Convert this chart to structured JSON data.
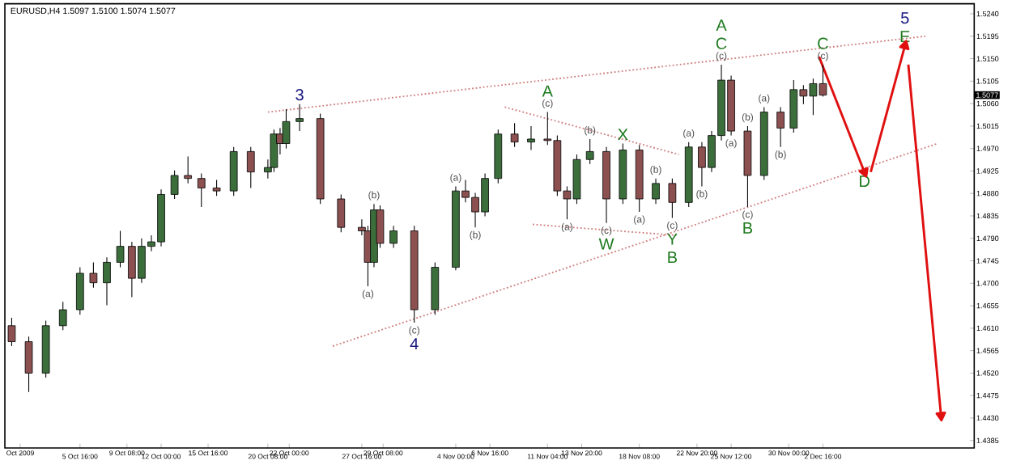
{
  "chart_data": {
    "type": "candlestick",
    "title": "EURUSD,H4 1.5097 1.5100 1.5074 1.5077",
    "x": [
      "2009-09-30T08:00",
      "2009-10-01T16:00",
      "2009-10-03T00:00",
      "2009-10-04T08:00",
      "2009-10-05T16:00",
      "2009-10-06T17:09",
      "2009-10-07T18:17",
      "2009-10-08T19:26",
      "2009-10-09T17:09",
      "2009-10-10T11:26",
      "2009-10-11T05:43",
      "2009-10-12T00:00",
      "2009-10-13T01:09",
      "2009-10-14T02:17",
      "2009-10-15T03:26",
      "2009-10-16T08:00",
      "2009-10-17T16:00",
      "2009-10-19T00:00",
      "2009-10-20T08:00",
      "2009-10-20T19:26",
      "2009-10-21T06:51",
      "2009-10-21T18:17",
      "2009-10-22T19:26",
      "2009-10-24T10:17",
      "2009-10-26T01:09",
      "2009-10-27T16:00",
      "2009-10-28T03:26",
      "2009-10-28T14:51",
      "2009-10-29T02:17",
      "2009-10-30T03:26",
      "2009-10-31T18:17",
      "2009-11-02T09:09",
      "2009-11-04T00:00",
      "2009-11-04T18:17",
      "2009-11-05T12:34",
      "2009-11-06T06:51",
      "2009-11-07T07:26",
      "2009-11-08T14:17",
      "2009-11-09T21:09",
      "2009-11-11T04:00",
      "2009-11-11T22:17",
      "2009-11-12T16:34",
      "2009-11-13T10:51",
      "2009-11-14T11:26",
      "2009-11-15T18:17",
      "2009-11-17T01:09",
      "2009-11-18T08:00",
      "2009-11-19T14:51",
      "2009-11-20T21:43",
      "2009-11-22T04:34",
      "2009-11-23T05:09",
      "2009-11-23T23:26",
      "2009-11-24T17:43",
      "2009-11-25T12:00",
      "2009-11-26T18:51",
      "2009-11-28T01:43",
      "2009-11-29T08:34",
      "2009-11-30T09:09",
      "2009-12-01T03:26",
      "2009-12-01T21:43",
      "2009-12-02T16:00"
    ],
    "ohlc": [
      [
        1.4615,
        1.4631,
        1.4574,
        1.4583
      ],
      [
        1.4583,
        1.4593,
        1.4482,
        1.452
      ],
      [
        1.452,
        1.4625,
        1.4511,
        1.4615
      ],
      [
        1.4615,
        1.4663,
        1.4606,
        1.4647
      ],
      [
        1.4647,
        1.4732,
        1.4637,
        1.472
      ],
      [
        1.472,
        1.4742,
        1.4691,
        1.4701
      ],
      [
        1.4701,
        1.4752,
        1.4656,
        1.4742
      ],
      [
        1.4742,
        1.4805,
        1.4732,
        1.4774
      ],
      [
        1.4774,
        1.4783,
        1.4672,
        1.471
      ],
      [
        1.471,
        1.479,
        1.4701,
        1.4774
      ],
      [
        1.4774,
        1.4796,
        1.4764,
        1.4783
      ],
      [
        1.4783,
        1.4888,
        1.4774,
        1.4878
      ],
      [
        1.4878,
        1.4926,
        1.4869,
        1.4916
      ],
      [
        1.4916,
        1.4954,
        1.49,
        1.491
      ],
      [
        1.491,
        1.492,
        1.4853,
        1.4891
      ],
      [
        1.4891,
        1.4907,
        1.4875,
        1.4885
      ],
      [
        1.4885,
        1.4973,
        1.4875,
        1.4964
      ],
      [
        1.4964,
        1.4973,
        1.4891,
        1.4923
      ],
      [
        1.4923,
        1.4948,
        1.491,
        1.4932
      ],
      [
        1.4932,
        1.5008,
        1.4923,
        1.4999
      ],
      [
        1.4999,
        1.5011,
        1.4958,
        1.498
      ],
      [
        1.498,
        1.5049,
        1.497,
        1.5024
      ],
      [
        1.5024,
        1.5059,
        1.5005,
        1.503
      ],
      [
        1.503,
        1.504,
        1.4859,
        1.4869
      ],
      [
        1.4869,
        1.4878,
        1.4802,
        1.4812
      ],
      [
        1.4812,
        1.4828,
        1.4796,
        1.4805
      ],
      [
        1.4805,
        1.4815,
        1.4694,
        1.4742
      ],
      [
        1.4742,
        1.4859,
        1.4732,
        1.4847
      ],
      [
        1.4847,
        1.4856,
        1.4771,
        1.478
      ],
      [
        1.478,
        1.4815,
        1.4771,
        1.4805
      ],
      [
        1.4805,
        1.4815,
        1.4621,
        1.4647
      ],
      [
        1.4647,
        1.4742,
        1.4637,
        1.4732
      ],
      [
        1.4732,
        1.4894,
        1.4726,
        1.4885
      ],
      [
        1.4885,
        1.4907,
        1.4862,
        1.4872
      ],
      [
        1.4872,
        1.4881,
        1.4812,
        1.4843
      ],
      [
        1.4843,
        1.492,
        1.4834,
        1.491
      ],
      [
        1.491,
        1.5008,
        1.49,
        1.4999
      ],
      [
        1.4999,
        1.5021,
        1.4973,
        1.4983
      ],
      [
        1.4983,
        1.5015,
        1.4967,
        1.4989
      ],
      [
        1.4989,
        1.5043,
        1.4977,
        1.4986
      ],
      [
        1.4986,
        1.4996,
        1.4875,
        1.4885
      ],
      [
        1.4885,
        1.4894,
        1.4828,
        1.4869
      ],
      [
        1.4869,
        1.4958,
        1.4859,
        1.4948
      ],
      [
        1.4948,
        1.4989,
        1.4939,
        1.4964
      ],
      [
        1.4964,
        1.4973,
        1.4821,
        1.4869
      ],
      [
        1.4869,
        1.498,
        1.4859,
        1.4967
      ],
      [
        1.4967,
        1.4977,
        1.4843,
        1.4869
      ],
      [
        1.4869,
        1.491,
        1.4859,
        1.49
      ],
      [
        1.49,
        1.491,
        1.4831,
        1.4862
      ],
      [
        1.4862,
        1.4983,
        1.4853,
        1.4973
      ],
      [
        1.4973,
        1.4983,
        1.4894,
        1.4932
      ],
      [
        1.4932,
        1.5005,
        1.4923,
        1.4996
      ],
      [
        1.4996,
        1.5138,
        1.4986,
        1.5107
      ],
      [
        1.5107,
        1.5116,
        1.4996,
        1.5005
      ],
      [
        1.5005,
        1.5015,
        1.4853,
        1.4916
      ],
      [
        1.4916,
        1.5053,
        1.4907,
        1.5043
      ],
      [
        1.5043,
        1.5053,
        1.4973,
        1.5011
      ],
      [
        1.5011,
        1.5107,
        1.5002,
        1.5088
      ],
      [
        1.5088,
        1.5097,
        1.5059,
        1.5075
      ],
      [
        1.5075,
        1.511,
        1.5037,
        1.51
      ],
      [
        1.51,
        1.5138,
        1.5074,
        1.5077
      ]
    ],
    "series": [
      {
        "type": "line",
        "color": "#d08080",
        "line_style": "dotted",
        "x": [
          "2009-10-20T08:00",
          "2009-12-10T16:00"
        ],
        "values": [
          1.5043,
          1.5195
        ]
      },
      {
        "type": "line",
        "color": "#d08080",
        "line_style": "dotted",
        "x": [
          "2009-10-25T09:36",
          "2009-12-11T14:51"
        ],
        "values": [
          1.4574,
          1.498
        ]
      },
      {
        "type": "line",
        "color": "#d08080",
        "line_style": "dotted",
        "x": [
          "2009-11-07T19:46",
          "2009-11-21T10:04"
        ],
        "values": [
          1.5053,
          1.4958
        ]
      },
      {
        "type": "line",
        "color": "#d08080",
        "line_style": "dotted",
        "x": [
          "2009-11-10T00:14",
          "2009-11-21T05:26"
        ],
        "values": [
          1.4818,
          1.4796
        ]
      },
      {
        "type": "line",
        "color": "#e01010",
        "line_style": "solid",
        "x": [
          "2009-12-02T08:41",
          "2009-12-05T21:43"
        ],
        "values": [
          1.5154,
          1.4923
        ]
      },
      {
        "type": "line",
        "color": "#e01010",
        "line_style": "solid",
        "x": [
          "2009-12-06T09:36",
          "2009-12-09T01:36"
        ],
        "values": [
          1.4923,
          1.5176
        ]
      },
      {
        "type": "line",
        "color": "#e01010",
        "line_style": "solid",
        "x": [
          "2009-12-09T08:00",
          "2009-12-11T21:15"
        ],
        "values": [
          1.5138,
          1.4435
        ]
      }
    ],
    "xlim": [
      "2009-09-29T19:12",
      "2009-12-14T11:26"
    ],
    "ylim": [
      1.437,
      1.526
    ],
    "xticks": [
      {
        "value": "2009-10-01T00:00",
        "label": "Oct 2009"
      },
      {
        "value": "2009-10-05T16:00",
        "label": "5 Oct 16:00"
      },
      {
        "value": "2009-10-09T08:00",
        "label": "9 Oct 08:00"
      },
      {
        "value": "2009-10-12T00:00",
        "label": "12 Oct 00:00"
      },
      {
        "value": "2009-10-15T16:00",
        "label": "15 Oct 16:00"
      },
      {
        "value": "2009-10-20T08:00",
        "label": "20 Oct 08:00"
      },
      {
        "value": "2009-10-22T00:00",
        "label": "22 Oct 00:00"
      },
      {
        "value": "2009-10-27T16:00",
        "label": "27 Oct 16:00"
      },
      {
        "value": "2009-10-29T08:00",
        "label": "29 Oct 08:00"
      },
      {
        "value": "2009-11-04T00:00",
        "label": "4 Nov 00:00"
      },
      {
        "value": "2009-11-06T16:00",
        "label": "6 Nov 16:00"
      },
      {
        "value": "2009-11-11T04:00",
        "label": "11 Nov 04:00"
      },
      {
        "value": "2009-11-13T20:00",
        "label": "13 Nov 20:00"
      },
      {
        "value": "2009-11-18T08:00",
        "label": "18 Nov 08:00"
      },
      {
        "value": "2009-11-22T20:00",
        "label": "22 Nov 20:00"
      },
      {
        "value": "2009-11-25T12:00",
        "label": "25 Nov 12:00"
      },
      {
        "value": "2009-11-30T00:00",
        "label": "30 Nov 00:00"
      },
      {
        "value": "2009-12-02T16:00",
        "label": "2 Dec 16:00"
      }
    ],
    "yticks": [
      {
        "value": 1.524,
        "label": "1.5240"
      },
      {
        "value": 1.5195,
        "label": "1.5195"
      },
      {
        "value": 1.515,
        "label": "1.5150"
      },
      {
        "value": 1.5105,
        "label": "1.5105"
      },
      {
        "value": 1.506,
        "label": "1.5060"
      },
      {
        "value": 1.5015,
        "label": "1.5015"
      },
      {
        "value": 1.497,
        "label": "1.4970"
      },
      {
        "value": 1.4925,
        "label": "1.4925"
      },
      {
        "value": 1.488,
        "label": "1.4880"
      },
      {
        "value": 1.4835,
        "label": "1.4835"
      },
      {
        "value": 1.479,
        "label": "1.4790"
      },
      {
        "value": 1.4745,
        "label": "1.4745"
      },
      {
        "value": 1.47,
        "label": "1.4700"
      },
      {
        "value": 1.4655,
        "label": "1.4655"
      },
      {
        "value": 1.461,
        "label": "1.4610"
      },
      {
        "value": 1.4565,
        "label": "1.4565"
      },
      {
        "value": 1.452,
        "label": "1.4520"
      },
      {
        "value": 1.4475,
        "label": "1.4475"
      },
      {
        "value": 1.443,
        "label": "1.4430"
      },
      {
        "value": 1.4385,
        "label": "1.4385"
      }
    ],
    "grid": false,
    "annotations": [
      "1.5077",
      {
        "text": "3",
        "x": "2009-10-22T19:26",
        "y": 1.5059
      },
      {
        "text": "(c)",
        "x": "2009-10-31T18:17",
        "y": 1.4621
      },
      {
        "text": "4",
        "x": "2009-10-31T18:17",
        "y": 1.4621
      },
      {
        "text": "(a)",
        "x": "2009-10-28T03:26",
        "y": 1.4694
      },
      {
        "text": "(b)",
        "x": "2009-10-28T14:51",
        "y": 1.4859
      },
      {
        "text": "(a)",
        "x": "2009-11-04T00:00",
        "y": 1.4894
      },
      {
        "text": "(b)",
        "x": "2009-11-05T12:34",
        "y": 1.4812
      },
      {
        "text": "(c)",
        "x": "2009-11-11T04:00",
        "y": 1.5043
      },
      {
        "text": "A",
        "x": "2009-11-11T04:00",
        "y": 1.5043
      },
      {
        "text": "(a)",
        "x": "2009-11-12T16:34",
        "y": 1.4828
      },
      {
        "text": "(b)",
        "x": "2009-11-14T11:26",
        "y": 1.4989
      },
      {
        "text": "(c)",
        "x": "2009-11-15T18:17",
        "y": 1.4821
      },
      {
        "text": "W",
        "x": "2009-11-15T18:17",
        "y": 1.4821
      },
      {
        "text": "X",
        "x": "2009-11-17T01:09",
        "y": 1.498
      },
      {
        "text": "(a)",
        "x": "2009-11-18T08:00",
        "y": 1.4843
      },
      {
        "text": "(b)",
        "x": "2009-11-19T14:51",
        "y": 1.491
      },
      {
        "text": "(c)",
        "x": "2009-11-20T21:43",
        "y": 1.4831
      },
      {
        "text": "Y",
        "x": "2009-11-20T21:43",
        "y": 1.4831
      },
      {
        "text": "B",
        "x": "2009-11-20T21:43",
        "y": 1.4831
      },
      {
        "text": "(a)",
        "x": "2009-11-22T04:34",
        "y": 1.4983
      },
      {
        "text": "(b)",
        "x": "2009-11-23T05:09",
        "y": 1.4894
      },
      {
        "text": "(c)",
        "x": "2009-11-24T17:43",
        "y": 1.5138
      },
      {
        "text": "C",
        "x": "2009-11-24T17:43",
        "y": 1.5138
      },
      {
        "text": "A",
        "x": "2009-11-24T17:43",
        "y": 1.5138
      },
      {
        "text": "(a)",
        "x": "2009-11-25T12:00",
        "y": 1.4996
      },
      {
        "text": "(b)",
        "x": "2009-11-26T18:51",
        "y": 1.5015
      },
      {
        "text": "(c)",
        "x": "2009-11-26T18:51",
        "y": 1.4853
      },
      {
        "text": "B",
        "x": "2009-11-26T18:51",
        "y": 1.4853
      },
      {
        "text": "(a)",
        "x": "2009-11-28T01:43",
        "y": 1.5053
      },
      {
        "text": "(b)",
        "x": "2009-11-29T08:34",
        "y": 1.4973
      },
      {
        "text": "(c)",
        "x": "2009-12-02T16:00",
        "y": 1.5138
      },
      {
        "text": "C",
        "x": "2009-12-02T16:00",
        "y": 1.5138
      },
      {
        "text": "D",
        "x": "2009-12-05T21:43",
        "y": 1.4923
      },
      {
        "text": "E",
        "x": "2009-12-09T01:36",
        "y": 1.5176
      },
      {
        "text": "5",
        "x": "2009-12-09T01:36",
        "y": 1.5176
      }
    ]
  }
}
